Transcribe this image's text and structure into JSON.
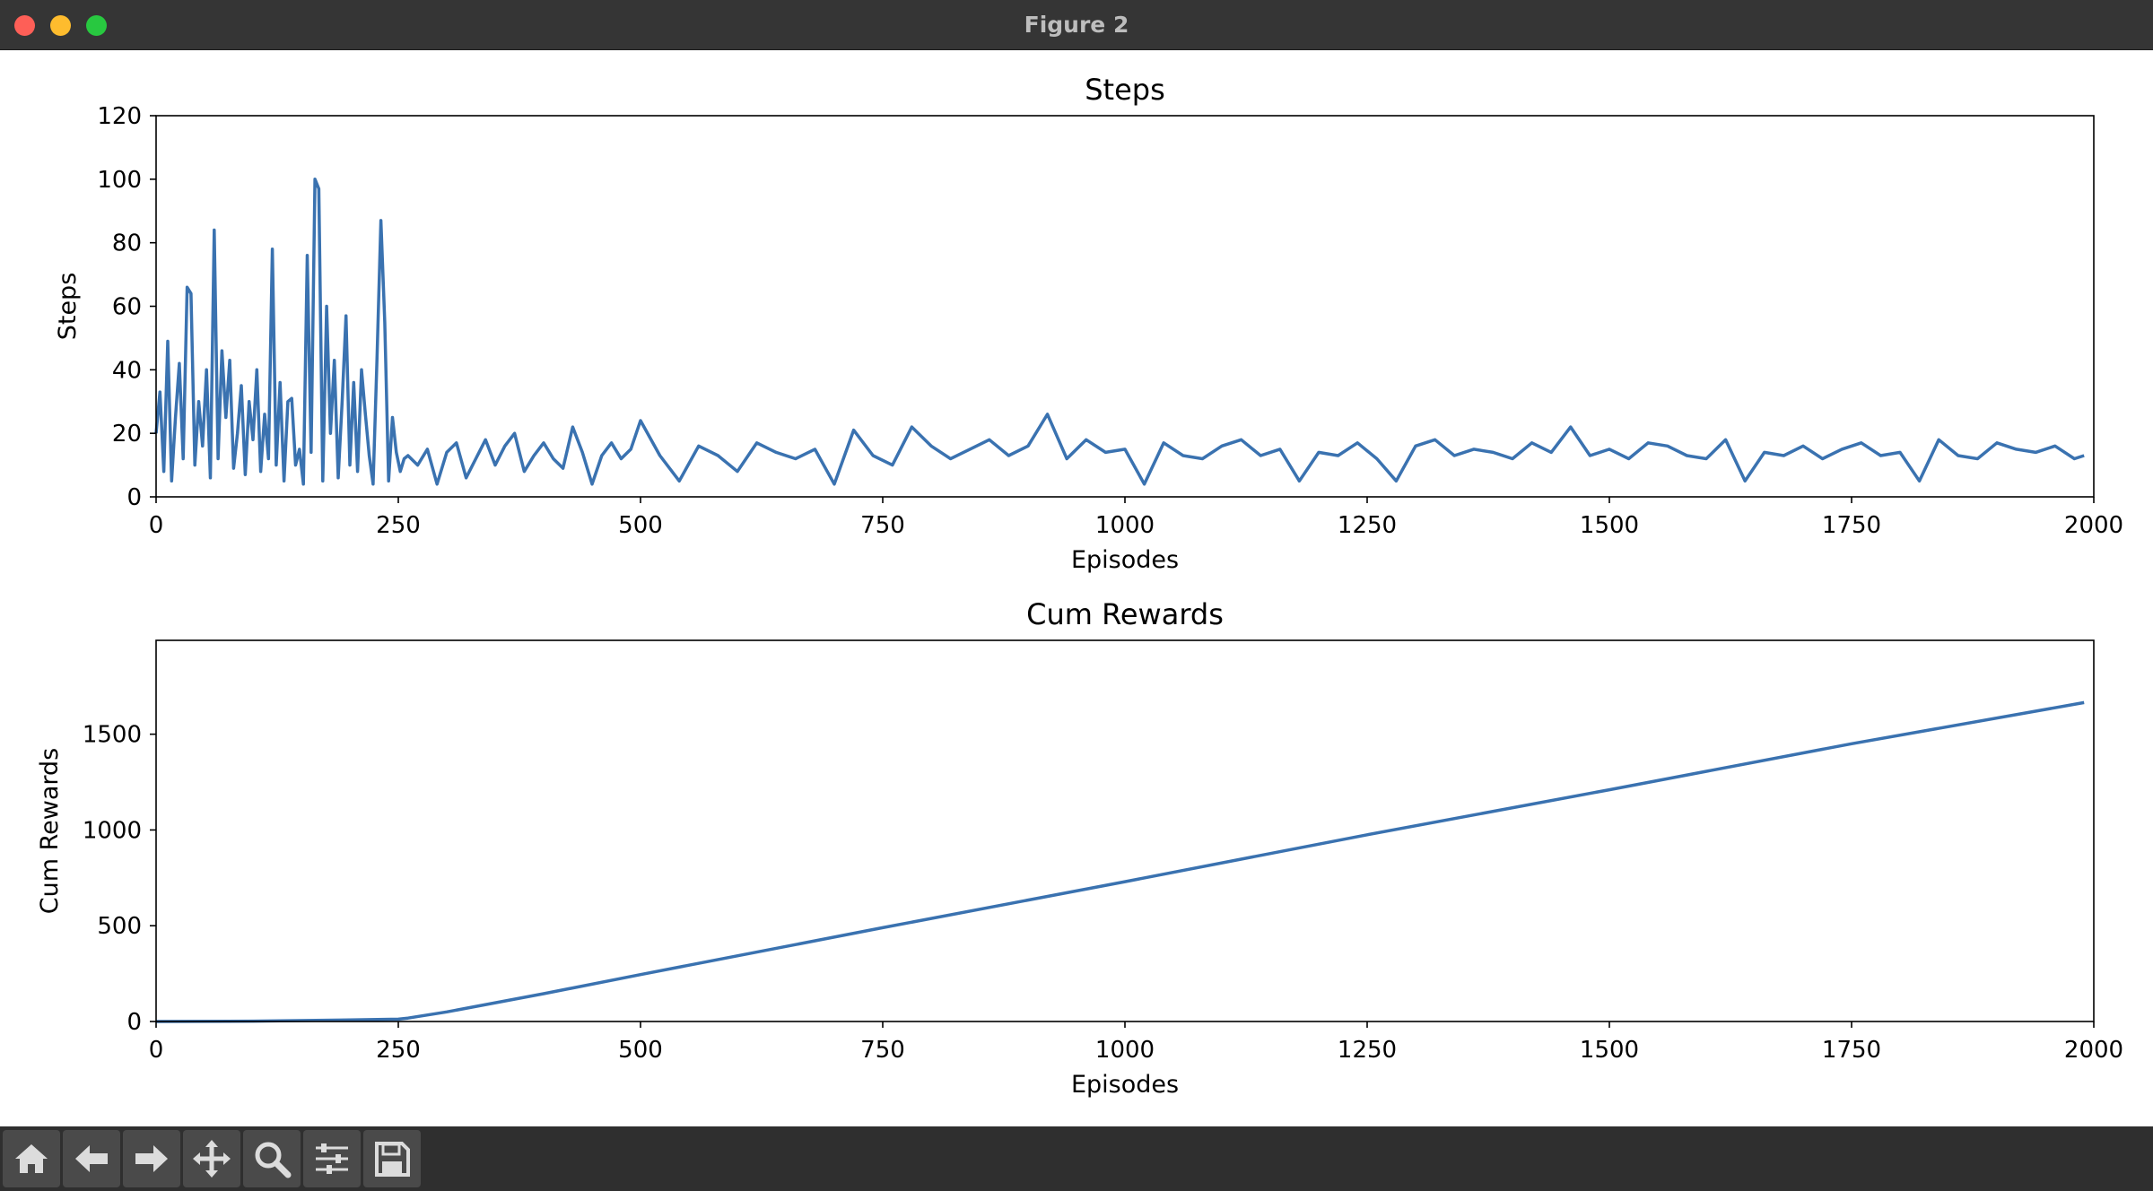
{
  "window": {
    "title": "Figure 2"
  },
  "toolbar": {
    "items": [
      {
        "name": "home",
        "icon": "home-icon"
      },
      {
        "name": "back",
        "icon": "arrow-left-icon"
      },
      {
        "name": "forward",
        "icon": "arrow-right-icon"
      },
      {
        "name": "pan",
        "icon": "move-icon"
      },
      {
        "name": "zoom",
        "icon": "magnifier-icon"
      },
      {
        "name": "configure-subplots",
        "icon": "sliders-icon"
      },
      {
        "name": "save",
        "icon": "floppy-disk-icon"
      }
    ]
  },
  "colors": {
    "line": "#3a72b0",
    "titlebar": "#353535",
    "toolbar": "#2f2f2f"
  },
  "chart_data": [
    {
      "type": "line",
      "title": "Steps",
      "xlabel": "Episodes",
      "ylabel": "Steps",
      "xlim": [
        0,
        2000
      ],
      "ylim": [
        0,
        120
      ],
      "xticks": [
        0,
        250,
        500,
        750,
        1000,
        1250,
        1500,
        1750,
        2000
      ],
      "yticks": [
        0,
        20,
        40,
        60,
        80,
        100,
        120
      ],
      "grid": false,
      "series": [
        {
          "x": [
            0,
            4,
            8,
            12,
            16,
            20,
            24,
            28,
            32,
            36,
            40,
            44,
            48,
            52,
            56,
            60,
            64,
            68,
            72,
            76,
            80,
            84,
            88,
            92,
            96,
            100,
            104,
            108,
            112,
            116,
            120,
            124,
            128,
            132,
            136,
            140,
            144,
            148,
            152,
            156,
            160,
            164,
            168,
            172,
            176,
            180,
            184,
            188,
            192,
            196,
            200,
            204,
            208,
            212,
            216,
            220,
            224,
            228,
            232,
            236,
            240,
            244,
            248,
            252,
            256,
            260,
            270,
            280,
            290,
            300,
            310,
            320,
            330,
            340,
            350,
            360,
            370,
            380,
            390,
            400,
            410,
            420,
            430,
            440,
            450,
            460,
            470,
            480,
            490,
            500,
            520,
            540,
            560,
            580,
            600,
            620,
            640,
            660,
            680,
            700,
            720,
            740,
            760,
            780,
            800,
            820,
            840,
            860,
            880,
            900,
            920,
            940,
            960,
            980,
            1000,
            1020,
            1040,
            1060,
            1080,
            1100,
            1120,
            1140,
            1160,
            1180,
            1200,
            1220,
            1240,
            1260,
            1280,
            1300,
            1320,
            1340,
            1360,
            1380,
            1400,
            1420,
            1440,
            1460,
            1480,
            1500,
            1520,
            1540,
            1560,
            1580,
            1600,
            1620,
            1640,
            1660,
            1680,
            1700,
            1720,
            1740,
            1760,
            1780,
            1800,
            1820,
            1840,
            1860,
            1880,
            1900,
            1920,
            1940,
            1960,
            1980,
            1990
          ],
          "y": [
            20,
            33,
            8,
            49,
            5,
            25,
            42,
            12,
            66,
            64,
            10,
            30,
            16,
            40,
            6,
            84,
            12,
            46,
            25,
            43,
            9,
            20,
            35,
            7,
            30,
            18,
            40,
            8,
            26,
            12,
            78,
            10,
            36,
            5,
            30,
            31,
            10,
            15,
            4,
            76,
            14,
            100,
            97,
            5,
            60,
            20,
            43,
            6,
            30,
            57,
            10,
            36,
            8,
            40,
            26,
            13,
            4,
            43,
            87,
            55,
            5,
            25,
            14,
            8,
            12,
            13,
            10,
            15,
            4,
            14,
            17,
            6,
            12,
            18,
            10,
            16,
            20,
            8,
            13,
            17,
            12,
            9,
            22,
            14,
            4,
            13,
            17,
            12,
            15,
            24,
            13,
            5,
            16,
            13,
            8,
            17,
            14,
            12,
            15,
            4,
            21,
            13,
            10,
            22,
            16,
            12,
            15,
            18,
            13,
            16,
            26,
            12,
            18,
            14,
            15,
            4,
            17,
            13,
            12,
            16,
            18,
            13,
            15,
            5,
            14,
            13,
            17,
            12,
            5,
            16,
            18,
            13,
            15,
            14,
            12,
            17,
            14,
            22,
            13,
            15,
            12,
            17,
            16,
            13,
            12,
            18,
            5,
            14,
            13,
            16,
            12,
            15,
            17,
            13,
            14,
            5,
            18,
            13,
            12,
            17,
            15,
            14,
            16,
            12,
            13
          ]
        }
      ]
    },
    {
      "type": "line",
      "title": "Cum Rewards",
      "xlabel": "Episodes",
      "ylabel": "Cum Rewards",
      "xlim": [
        0,
        2000
      ],
      "ylim": [
        0,
        1990
      ],
      "xticks": [
        0,
        250,
        500,
        750,
        1000,
        1250,
        1500,
        1750,
        2000
      ],
      "yticks": [
        0,
        500,
        1000,
        1500
      ],
      "grid": false,
      "series": [
        {
          "x": [
            0,
            100,
            200,
            250,
            260,
            300,
            400,
            500,
            750,
            1000,
            1250,
            1500,
            1750,
            1990
          ],
          "y": [
            0,
            2,
            8,
            12,
            18,
            50,
            145,
            245,
            490,
            730,
            975,
            1210,
            1450,
            1665
          ]
        }
      ]
    }
  ]
}
